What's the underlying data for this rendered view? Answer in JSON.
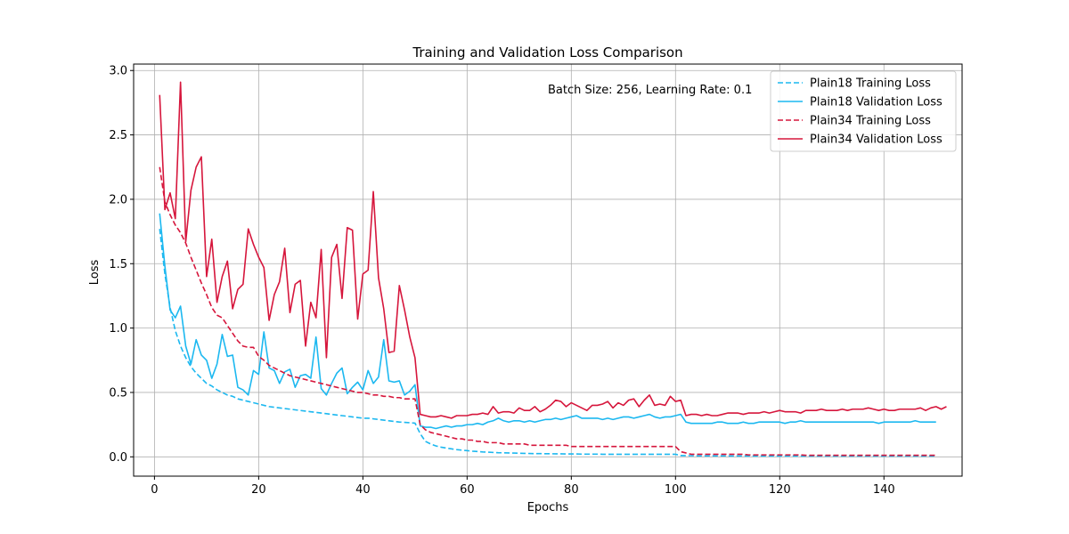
{
  "chart_data": {
    "type": "line",
    "title": "Training and Validation Loss Comparison",
    "xlabel": "Epochs",
    "ylabel": "Loss",
    "xlim": [
      -4,
      155
    ],
    "ylim": [
      -0.15,
      3.05
    ],
    "xticks": [
      0,
      20,
      40,
      60,
      80,
      100,
      120,
      140
    ],
    "yticks": [
      0.0,
      0.5,
      1.0,
      1.5,
      2.0,
      2.5,
      3.0
    ],
    "grid": true,
    "legend_position": "top-right",
    "annotation": "Batch Size: 256, Learning Rate: 0.1",
    "x_start": 1,
    "series": [
      {
        "name": "Plain18 Training Loss",
        "color": "#1cb8f0",
        "style": "dashed",
        "values": [
          1.77,
          1.42,
          1.16,
          0.98,
          0.86,
          0.77,
          0.7,
          0.65,
          0.61,
          0.57,
          0.55,
          0.52,
          0.5,
          0.48,
          0.47,
          0.45,
          0.44,
          0.43,
          0.42,
          0.41,
          0.4,
          0.39,
          0.385,
          0.38,
          0.375,
          0.37,
          0.365,
          0.36,
          0.355,
          0.35,
          0.345,
          0.34,
          0.335,
          0.33,
          0.325,
          0.32,
          0.315,
          0.31,
          0.305,
          0.3,
          0.3,
          0.295,
          0.29,
          0.285,
          0.28,
          0.275,
          0.27,
          0.268,
          0.265,
          0.262,
          0.18,
          0.12,
          0.1,
          0.085,
          0.075,
          0.068,
          0.062,
          0.056,
          0.052,
          0.048,
          0.044,
          0.041,
          0.038,
          0.036,
          0.034,
          0.032,
          0.031,
          0.03,
          0.029,
          0.028,
          0.027,
          0.026,
          0.025,
          0.025,
          0.024,
          0.024,
          0.023,
          0.023,
          0.022,
          0.022,
          0.022,
          0.021,
          0.021,
          0.021,
          0.021,
          0.02,
          0.02,
          0.02,
          0.02,
          0.02,
          0.02,
          0.02,
          0.02,
          0.02,
          0.02,
          0.02,
          0.02,
          0.02,
          0.02,
          0.02,
          0.01,
          0.009,
          0.009,
          0.008,
          0.008,
          0.008,
          0.008,
          0.008,
          0.008,
          0.007,
          0.007,
          0.007,
          0.007,
          0.007,
          0.007,
          0.007,
          0.007,
          0.007,
          0.007,
          0.007,
          0.007,
          0.007,
          0.007,
          0.006,
          0.006,
          0.006,
          0.006,
          0.006,
          0.006,
          0.006,
          0.006,
          0.006,
          0.006,
          0.006,
          0.006,
          0.006,
          0.006,
          0.006,
          0.006,
          0.006,
          0.006,
          0.006,
          0.006,
          0.006,
          0.006,
          0.006,
          0.006,
          0.006,
          0.006,
          0.006
        ]
      },
      {
        "name": "Plain18 Validation Loss",
        "color": "#1cb8f0",
        "style": "solid",
        "values": [
          1.89,
          1.48,
          1.14,
          1.08,
          1.17,
          0.86,
          0.72,
          0.91,
          0.79,
          0.75,
          0.61,
          0.72,
          0.95,
          0.78,
          0.79,
          0.54,
          0.52,
          0.48,
          0.67,
          0.64,
          0.97,
          0.69,
          0.67,
          0.57,
          0.66,
          0.68,
          0.54,
          0.63,
          0.64,
          0.61,
          0.93,
          0.53,
          0.48,
          0.57,
          0.65,
          0.69,
          0.49,
          0.54,
          0.58,
          0.52,
          0.67,
          0.57,
          0.62,
          0.91,
          0.59,
          0.58,
          0.59,
          0.48,
          0.51,
          0.56,
          0.24,
          0.23,
          0.23,
          0.22,
          0.23,
          0.24,
          0.23,
          0.24,
          0.24,
          0.25,
          0.25,
          0.26,
          0.25,
          0.27,
          0.28,
          0.3,
          0.28,
          0.27,
          0.28,
          0.28,
          0.27,
          0.28,
          0.27,
          0.28,
          0.29,
          0.29,
          0.3,
          0.29,
          0.3,
          0.31,
          0.32,
          0.3,
          0.3,
          0.3,
          0.3,
          0.29,
          0.3,
          0.29,
          0.3,
          0.31,
          0.31,
          0.3,
          0.31,
          0.32,
          0.33,
          0.31,
          0.3,
          0.31,
          0.31,
          0.32,
          0.33,
          0.27,
          0.26,
          0.26,
          0.26,
          0.26,
          0.26,
          0.27,
          0.27,
          0.26,
          0.26,
          0.26,
          0.27,
          0.26,
          0.26,
          0.27,
          0.27,
          0.27,
          0.27,
          0.27,
          0.26,
          0.27,
          0.27,
          0.28,
          0.27,
          0.27,
          0.27,
          0.27,
          0.27,
          0.27,
          0.27,
          0.27,
          0.27,
          0.27,
          0.27,
          0.27,
          0.27,
          0.27,
          0.26,
          0.27,
          0.27,
          0.27,
          0.27,
          0.27,
          0.27,
          0.28,
          0.27,
          0.27,
          0.27,
          0.27
        ]
      },
      {
        "name": "Plain34 Training Loss",
        "color": "#d6163c",
        "style": "dashed",
        "values": [
          2.25,
          1.98,
          1.88,
          1.8,
          1.74,
          1.66,
          1.55,
          1.45,
          1.35,
          1.26,
          1.16,
          1.1,
          1.08,
          1.02,
          0.96,
          0.9,
          0.86,
          0.85,
          0.85,
          0.78,
          0.75,
          0.71,
          0.69,
          0.67,
          0.65,
          0.63,
          0.62,
          0.61,
          0.6,
          0.59,
          0.58,
          0.57,
          0.56,
          0.55,
          0.54,
          0.53,
          0.52,
          0.51,
          0.5,
          0.5,
          0.49,
          0.48,
          0.48,
          0.47,
          0.47,
          0.46,
          0.46,
          0.45,
          0.45,
          0.45,
          0.25,
          0.21,
          0.19,
          0.18,
          0.17,
          0.16,
          0.15,
          0.14,
          0.14,
          0.13,
          0.13,
          0.12,
          0.12,
          0.11,
          0.11,
          0.11,
          0.1,
          0.1,
          0.1,
          0.1,
          0.1,
          0.09,
          0.09,
          0.09,
          0.09,
          0.09,
          0.09,
          0.09,
          0.09,
          0.08,
          0.08,
          0.08,
          0.08,
          0.08,
          0.08,
          0.08,
          0.08,
          0.08,
          0.08,
          0.08,
          0.08,
          0.08,
          0.08,
          0.08,
          0.08,
          0.08,
          0.08,
          0.08,
          0.08,
          0.08,
          0.04,
          0.03,
          0.02,
          0.02,
          0.02,
          0.02,
          0.02,
          0.02,
          0.02,
          0.02,
          0.02,
          0.02,
          0.02,
          0.015,
          0.015,
          0.015,
          0.015,
          0.015,
          0.015,
          0.015,
          0.015,
          0.015,
          0.015,
          0.015,
          0.012,
          0.012,
          0.012,
          0.012,
          0.012,
          0.012,
          0.012,
          0.012,
          0.012,
          0.012,
          0.012,
          0.012,
          0.012,
          0.012,
          0.012,
          0.012,
          0.012,
          0.012,
          0.012,
          0.012,
          0.012,
          0.012,
          0.012,
          0.012,
          0.012,
          0.012
        ]
      },
      {
        "name": "Plain34 Validation Loss",
        "color": "#d6163c",
        "style": "solid",
        "values": [
          2.81,
          1.92,
          2.05,
          1.85,
          2.91,
          1.67,
          2.07,
          2.25,
          2.33,
          1.4,
          1.69,
          1.2,
          1.4,
          1.52,
          1.15,
          1.3,
          1.34,
          1.77,
          1.65,
          1.55,
          1.47,
          1.06,
          1.26,
          1.36,
          1.62,
          1.12,
          1.34,
          1.37,
          0.86,
          1.2,
          1.08,
          1.61,
          0.77,
          1.55,
          1.65,
          1.23,
          1.78,
          1.76,
          1.07,
          1.42,
          1.45,
          2.06,
          1.39,
          1.15,
          0.81,
          0.82,
          1.33,
          1.14,
          0.93,
          0.77,
          0.33,
          0.32,
          0.31,
          0.31,
          0.32,
          0.31,
          0.3,
          0.32,
          0.32,
          0.32,
          0.33,
          0.33,
          0.34,
          0.33,
          0.39,
          0.34,
          0.35,
          0.35,
          0.34,
          0.38,
          0.36,
          0.36,
          0.39,
          0.35,
          0.37,
          0.4,
          0.44,
          0.43,
          0.39,
          0.42,
          0.4,
          0.38,
          0.36,
          0.4,
          0.4,
          0.41,
          0.43,
          0.38,
          0.42,
          0.4,
          0.44,
          0.45,
          0.39,
          0.44,
          0.48,
          0.4,
          0.41,
          0.4,
          0.47,
          0.43,
          0.44,
          0.32,
          0.33,
          0.33,
          0.32,
          0.33,
          0.32,
          0.32,
          0.33,
          0.34,
          0.34,
          0.34,
          0.33,
          0.34,
          0.34,
          0.34,
          0.35,
          0.34,
          0.35,
          0.36,
          0.35,
          0.35,
          0.35,
          0.34,
          0.36,
          0.36,
          0.36,
          0.37,
          0.36,
          0.36,
          0.36,
          0.37,
          0.36,
          0.37,
          0.37,
          0.37,
          0.38,
          0.37,
          0.36,
          0.37,
          0.36,
          0.36,
          0.37,
          0.37,
          0.37,
          0.37,
          0.38,
          0.36,
          0.38,
          0.39,
          0.37,
          0.39
        ]
      }
    ]
  }
}
